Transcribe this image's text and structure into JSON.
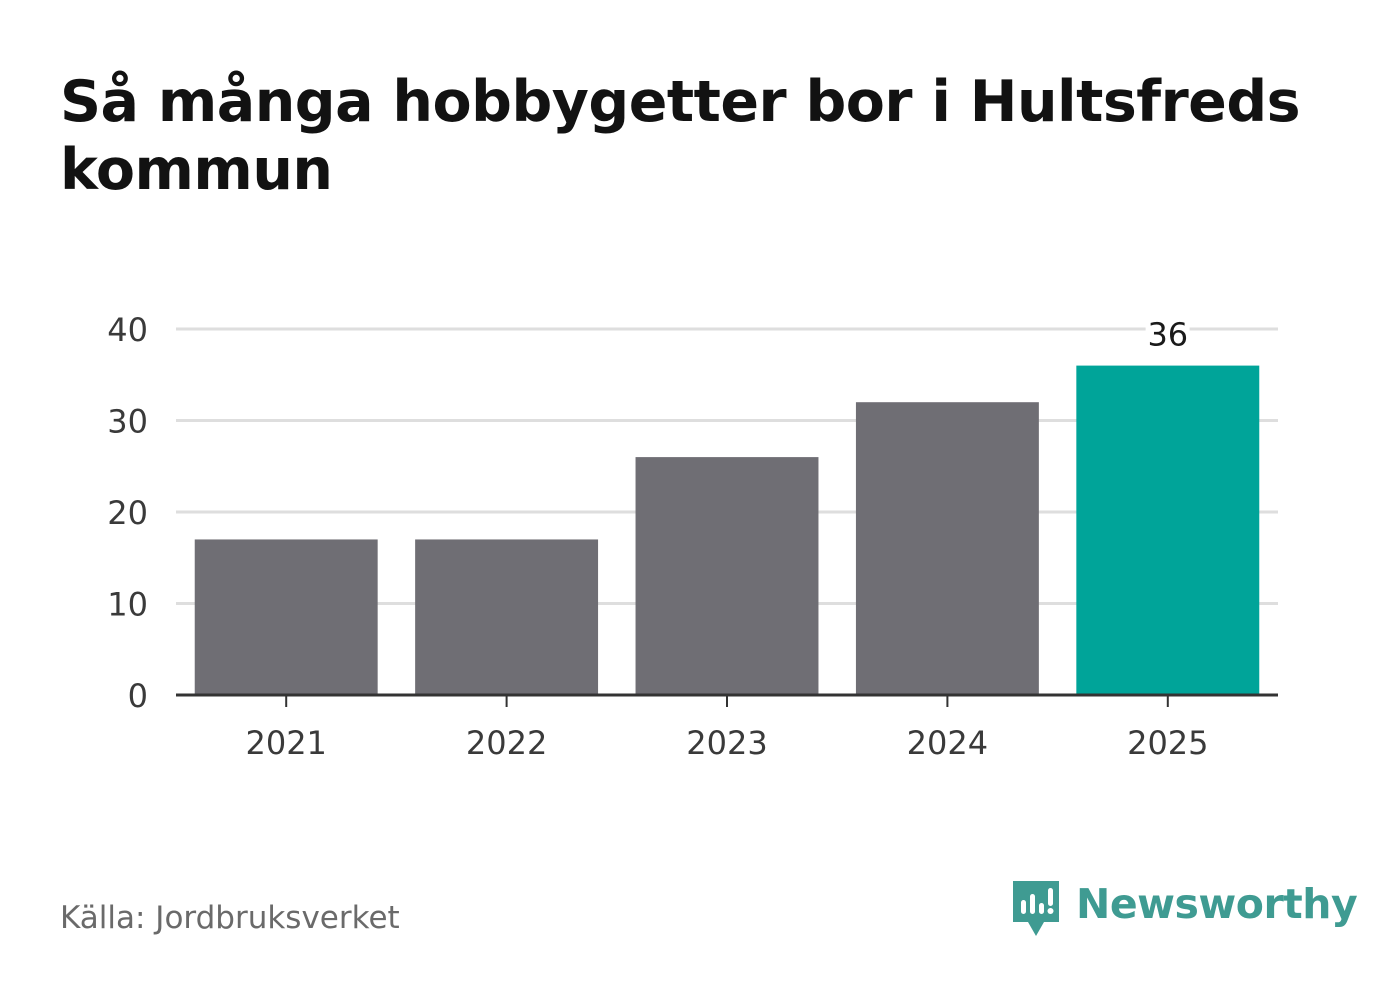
{
  "chart_data": {
    "type": "bar",
    "title": "Så många hobbygetter bor i Hultsfreds kommun",
    "categories": [
      "2021",
      "2022",
      "2023",
      "2024",
      "2025"
    ],
    "values": [
      17,
      17,
      26,
      32,
      36
    ],
    "ylim": [
      0,
      40
    ],
    "yticks": [
      "0",
      "10",
      "20",
      "30",
      "40"
    ],
    "xlabel": "",
    "ylabel": "",
    "grid": true,
    "bar_color": "#6f6e74",
    "highlight_color": "#00a499",
    "highlight_index": 4,
    "data_labels": [
      {
        "index": 4,
        "text": "36"
      }
    ]
  },
  "footer": {
    "source": "Källa: Jordbruksverket",
    "brand": "Newsworthy",
    "brand_icon": "newsworthy-logo-icon",
    "brand_color": "#3f9b92"
  }
}
